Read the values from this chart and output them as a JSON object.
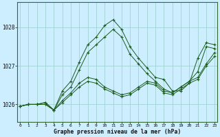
{
  "title": "Graphe pression niveau de la mer (hPa)",
  "xtick_labels": [
    "0",
    "1",
    "2",
    "3",
    "4",
    "5",
    "6",
    "7",
    "8",
    "9",
    "10",
    "11",
    "12",
    "13",
    "14",
    "15",
    "16",
    "17",
    "18",
    "19",
    "20",
    "21",
    "22",
    "23"
  ],
  "ylim": [
    1025.55,
    1028.65
  ],
  "xlim": [
    -0.3,
    23.3
  ],
  "bg_color": "#cceeff",
  "grid_color": "#99cccc",
  "line_color": "#1a5c1a",
  "series": [
    [
      1025.95,
      1026.0,
      1026.0,
      1026.05,
      1025.85,
      1026.35,
      1026.6,
      1027.1,
      1027.55,
      1027.75,
      1028.05,
      1028.2,
      1027.95,
      1027.5,
      1027.2,
      1026.95,
      1026.7,
      1026.65,
      1026.35,
      1026.35,
      1026.55,
      1027.2,
      1027.6,
      1027.55
    ],
    [
      1025.95,
      1026.0,
      1026.0,
      1026.05,
      1025.85,
      1026.25,
      1026.45,
      1026.9,
      1027.35,
      1027.55,
      1027.75,
      1027.95,
      1027.75,
      1027.3,
      1027.05,
      1026.8,
      1026.6,
      1026.4,
      1026.3,
      1026.45,
      1026.6,
      1026.85,
      1027.5,
      1027.45
    ],
    [
      1025.95,
      1026.0,
      1026.0,
      1026.0,
      1025.85,
      1026.1,
      1026.3,
      1026.55,
      1026.7,
      1026.65,
      1026.45,
      1026.35,
      1026.25,
      1026.3,
      1026.45,
      1026.6,
      1026.55,
      1026.35,
      1026.3,
      1026.45,
      1026.6,
      1026.7,
      1027.05,
      1027.35
    ],
    [
      1025.95,
      1026.0,
      1026.0,
      1026.0,
      1025.85,
      1026.05,
      1026.25,
      1026.45,
      1026.6,
      1026.55,
      1026.4,
      1026.3,
      1026.2,
      1026.25,
      1026.4,
      1026.55,
      1026.5,
      1026.3,
      1026.25,
      1026.4,
      1026.55,
      1026.65,
      1027.0,
      1027.25
    ]
  ],
  "figsize": [
    3.2,
    2.0
  ],
  "dpi": 100
}
